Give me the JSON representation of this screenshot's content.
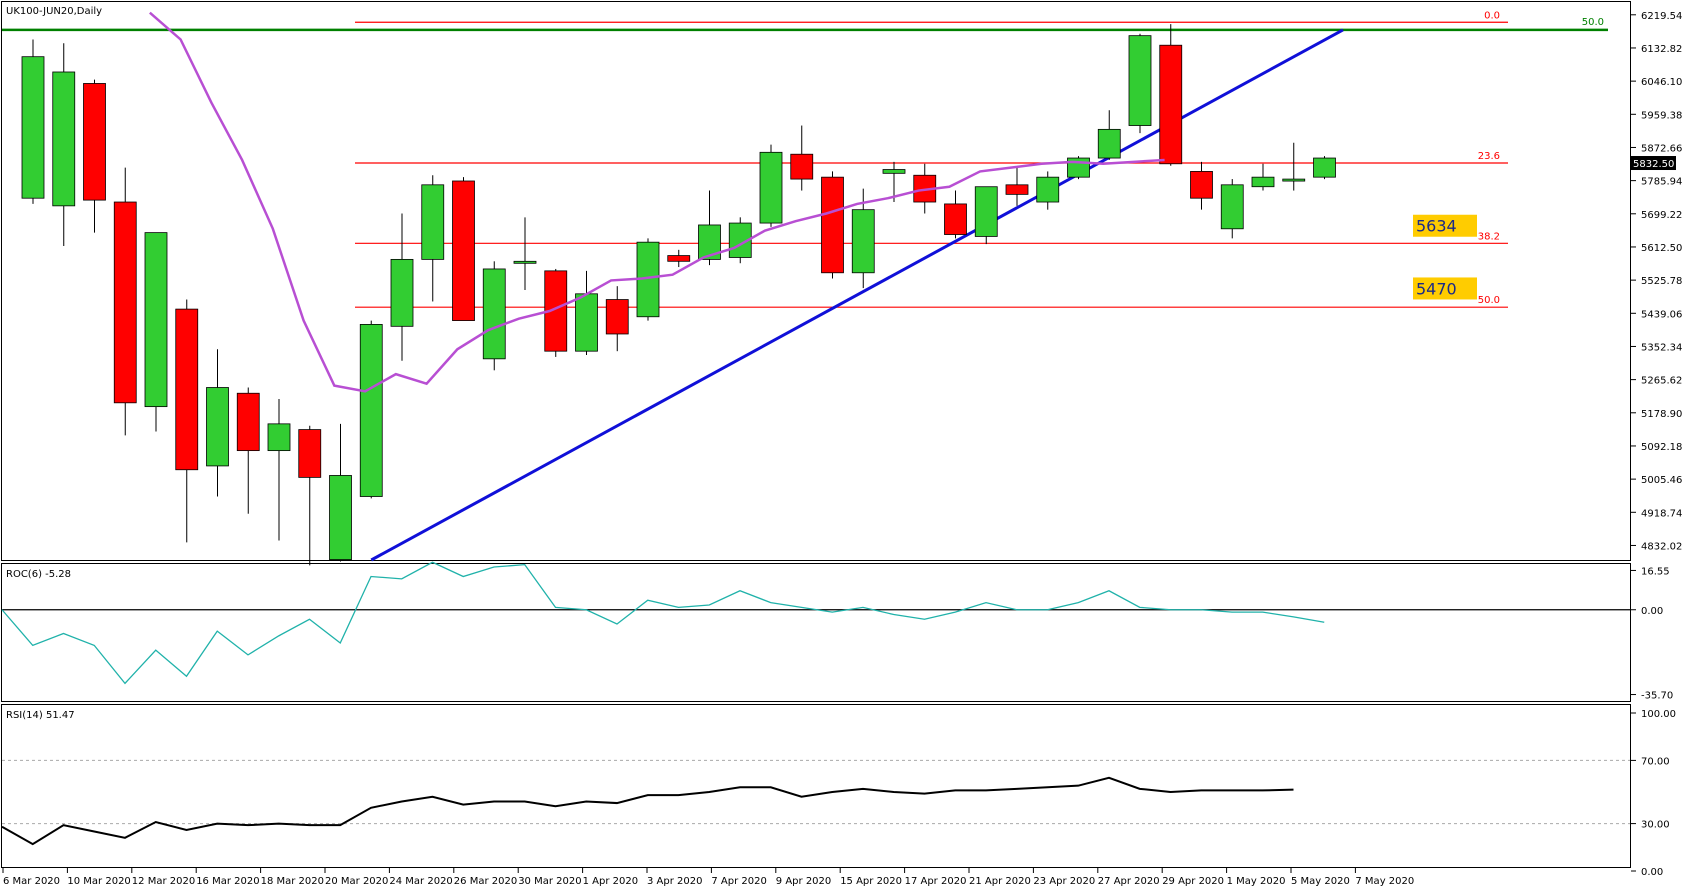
{
  "header": {
    "main_title": "UK100-JUN20,Daily",
    "price_tag": "5832.50"
  },
  "colors": {
    "bull": "#32cd32",
    "bear": "#ff0000",
    "ma": "#b84fd3",
    "trendline": "#1010d8",
    "fib": "#ff0000",
    "fib50": "#008000",
    "box": "#ffcc00",
    "roc": "#20b2aa",
    "rsi": "#000000"
  },
  "chart_data": [
    {
      "type": "candlestick",
      "title": "UK100-JUN20,Daily",
      "y_ticks": [
        "6219.54",
        "6132.82",
        "6046.10",
        "5959.38",
        "5872.66",
        "5785.94",
        "5699.22",
        "5612.50",
        "5525.78",
        "5439.06",
        "5352.34",
        "5265.62",
        "5178.90",
        "5092.18",
        "5005.46",
        "4918.74",
        "4832.02"
      ],
      "ylim": [
        4794,
        6253
      ],
      "x_labels": [
        "6 Mar 2020",
        "10 Mar 2020",
        "12 Mar 2020",
        "16 Mar 2020",
        "18 Mar 2020",
        "20 Mar 2020",
        "24 Mar 2020",
        "26 Mar 2020",
        "30 Mar 2020",
        "1 Apr 2020",
        "3 Apr 2020",
        "7 Apr 2020",
        "9 Apr 2020",
        "15 Apr 2020",
        "17 Apr 2020",
        "21 Apr 2020",
        "23 Apr 2020",
        "27 Apr 2020",
        "29 Apr 2020",
        "1 May 2020",
        "5 May 2020",
        "7 May 2020"
      ],
      "candles": [
        {
          "o": 5740,
          "h": 6155,
          "l": 5725,
          "c": 6110
        },
        {
          "o": 5720,
          "h": 6145,
          "l": 5615,
          "c": 6070
        },
        {
          "o": 6040,
          "h": 6050,
          "l": 5650,
          "c": 5735
        },
        {
          "o": 5730,
          "h": 5820,
          "l": 5120,
          "c": 5205
        },
        {
          "o": 5195,
          "h": 5650,
          "l": 5130,
          "c": 5650
        },
        {
          "o": 5450,
          "h": 5475,
          "l": 4840,
          "c": 5030
        },
        {
          "o": 5040,
          "h": 5345,
          "l": 4960,
          "c": 5245
        },
        {
          "o": 5230,
          "h": 5245,
          "l": 4915,
          "c": 5080
        },
        {
          "o": 5080,
          "h": 5215,
          "l": 4845,
          "c": 5150
        },
        {
          "o": 5135,
          "h": 5145,
          "l": 4780,
          "c": 5010
        },
        {
          "o": 4795,
          "h": 5150,
          "l": 4790,
          "c": 5015
        },
        {
          "o": 4960,
          "h": 5420,
          "l": 4955,
          "c": 5410
        },
        {
          "o": 5405,
          "h": 5700,
          "l": 5315,
          "c": 5580
        },
        {
          "o": 5580,
          "h": 5800,
          "l": 5470,
          "c": 5775
        },
        {
          "o": 5785,
          "h": 5795,
          "l": 5425,
          "c": 5420
        },
        {
          "o": 5320,
          "h": 5575,
          "l": 5290,
          "c": 5555
        },
        {
          "o": 5570,
          "h": 5690,
          "l": 5500,
          "c": 5575
        },
        {
          "o": 5550,
          "h": 5555,
          "l": 5325,
          "c": 5340
        },
        {
          "o": 5340,
          "h": 5550,
          "l": 5330,
          "c": 5490
        },
        {
          "o": 5475,
          "h": 5510,
          "l": 5340,
          "c": 5385
        },
        {
          "o": 5430,
          "h": 5635,
          "l": 5420,
          "c": 5625
        },
        {
          "o": 5590,
          "h": 5605,
          "l": 5560,
          "c": 5575
        },
        {
          "o": 5580,
          "h": 5760,
          "l": 5565,
          "c": 5670
        },
        {
          "o": 5585,
          "h": 5690,
          "l": 5570,
          "c": 5675
        },
        {
          "o": 5675,
          "h": 5880,
          "l": 5665,
          "c": 5860
        },
        {
          "o": 5855,
          "h": 5930,
          "l": 5760,
          "c": 5790
        },
        {
          "o": 5795,
          "h": 5810,
          "l": 5530,
          "c": 5545
        },
        {
          "o": 5545,
          "h": 5765,
          "l": 5505,
          "c": 5710
        },
        {
          "o": 5805,
          "h": 5835,
          "l": 5730,
          "c": 5815
        },
        {
          "o": 5800,
          "h": 5830,
          "l": 5700,
          "c": 5730
        },
        {
          "o": 5725,
          "h": 5760,
          "l": 5635,
          "c": 5645
        },
        {
          "o": 5640,
          "h": 5770,
          "l": 5620,
          "c": 5770
        },
        {
          "o": 5775,
          "h": 5820,
          "l": 5720,
          "c": 5750
        },
        {
          "o": 5730,
          "h": 5810,
          "l": 5710,
          "c": 5795
        },
        {
          "o": 5795,
          "h": 5850,
          "l": 5790,
          "c": 5845
        },
        {
          "o": 5845,
          "h": 5970,
          "l": 5840,
          "c": 5920
        },
        {
          "o": 5930,
          "h": 6170,
          "l": 5910,
          "c": 6165
        },
        {
          "o": 6140,
          "h": 6195,
          "l": 5825,
          "c": 5830
        },
        {
          "o": 5810,
          "h": 5835,
          "l": 5710,
          "c": 5740
        },
        {
          "o": 5660,
          "h": 5790,
          "l": 5635,
          "c": 5775
        },
        {
          "o": 5770,
          "h": 5830,
          "l": 5760,
          "c": 5795
        },
        {
          "o": 5790,
          "h": 5885,
          "l": 5760,
          "c": 5790
        },
        {
          "o": 5795,
          "h": 5850,
          "l": 5790,
          "c": 5845
        }
      ],
      "ma": [
        6225,
        6155,
        5990,
        5840,
        5660,
        5420,
        5250,
        5235,
        5280,
        5255,
        5345,
        5395,
        5425,
        5445,
        5480,
        5525,
        5530,
        5540,
        5585,
        5610,
        5655,
        5680,
        5700,
        5725,
        5740,
        5760,
        5770,
        5810,
        5820,
        5830,
        5835,
        5830,
        5835,
        5840
      ],
      "trendline": {
        "from_index": 11,
        "from_value": 4794,
        "to_index": 42.6,
        "to_value": 6180
      },
      "fib_levels": [
        {
          "label": "0.0",
          "value": 6200
        },
        {
          "label": "23.6",
          "value": 5832
        },
        {
          "label": "38.2",
          "value": 5622
        },
        {
          "label": "50.0",
          "value": 5455
        }
      ],
      "fib50_line": {
        "label": "50.0",
        "value": 6180
      },
      "boxes": [
        {
          "label": "5634",
          "value": 5634
        },
        {
          "label": "5470",
          "value": 5470
        }
      ]
    },
    {
      "type": "line",
      "title": "ROC(6) -5.28",
      "y_ticks": [
        "16.55",
        "0.00",
        "-35.70"
      ],
      "ylim": [
        -38,
        18
      ],
      "values": [
        0,
        -15,
        -10,
        -15,
        -31,
        -17,
        -28,
        -9,
        -19,
        -11,
        -4,
        -14,
        14,
        13,
        20,
        14,
        18,
        19,
        1,
        0,
        -6,
        4,
        1,
        2,
        8,
        3,
        1,
        -1,
        1,
        -2,
        -4,
        -1,
        3,
        0,
        0,
        3,
        8,
        1,
        0,
        0,
        -1,
        -1,
        -3,
        -5.28
      ]
    },
    {
      "type": "line",
      "title": "RSI(14) 51.47",
      "y_ticks": [
        "100.00",
        "70.00",
        "30.00",
        "0.00"
      ],
      "ylim": [
        0,
        100
      ],
      "levels": [
        70,
        30
      ],
      "values": [
        28,
        17,
        29,
        25,
        21,
        31,
        26,
        30,
        29,
        30,
        29,
        29,
        40,
        44,
        47,
        42,
        44,
        44,
        41,
        44,
        43,
        48,
        48,
        50,
        53,
        53,
        47,
        50,
        52,
        50,
        49,
        51,
        51,
        52,
        53,
        54,
        59,
        52,
        50,
        51,
        51,
        51,
        51.47
      ]
    }
  ]
}
